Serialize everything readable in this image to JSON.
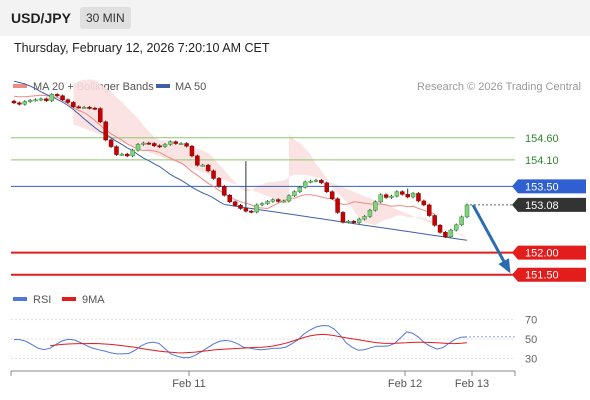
{
  "header": {
    "symbol": "USD/JPY",
    "timeframe": "30 MIN"
  },
  "datetime": "Thursday, February 12, 2026 7:20:10 AM CET",
  "legend": {
    "ma20_label": "MA 20 + Bollinger Bands",
    "ma50_label": "MA 50",
    "credit": "Research © 2026 Trading Central",
    "rsi_label": "RSI",
    "ma9_label": "9MA"
  },
  "colors": {
    "ma20": "#f08a84",
    "bands": "#fbe0e0",
    "ma50": "#3f5fa8",
    "green": "#8cc86e",
    "blue_level": "#2f5fd0",
    "red_level": "#e31c1c",
    "rsi": "#4f78d8",
    "ma9": "#e31c1c",
    "candle_up": "#7fd27f",
    "candle_down": "#c40000",
    "wick": "#333333",
    "arrow": "#2b6cb0",
    "last_price_bg": "#333333"
  },
  "chart_data": [
    {
      "type": "candlestick",
      "title": "USD/JPY",
      "timeframe": "30 MIN",
      "ylim": [
        151.2,
        155.5
      ],
      "x_ticks": [
        "Feb 11",
        "Feb 12",
        "Feb 13"
      ],
      "levels": [
        {
          "label": "154.60",
          "value": 154.6,
          "kind": "resistance"
        },
        {
          "label": "154.10",
          "value": 154.1,
          "kind": "resistance"
        },
        {
          "label": "153.50",
          "value": 153.5,
          "kind": "pivot"
        },
        {
          "label": "152.00",
          "value": 152.0,
          "kind": "support"
        },
        {
          "label": "151.50",
          "value": 151.5,
          "kind": "support"
        }
      ],
      "last_price": "153.08",
      "closes": [
        155.39,
        155.36,
        155.42,
        155.45,
        155.46,
        155.48,
        155.44,
        155.58,
        155.55,
        155.46,
        155.4,
        155.3,
        155.29,
        155.29,
        155.27,
        155.26,
        154.96,
        154.55,
        154.4,
        154.22,
        154.23,
        154.19,
        154.32,
        154.45,
        154.48,
        154.47,
        154.42,
        154.4,
        154.45,
        154.51,
        154.47,
        154.47,
        154.41,
        154.19,
        153.98,
        153.98,
        153.85,
        153.68,
        153.5,
        153.3,
        153.15,
        153.07,
        153.0,
        152.94,
        152.92,
        153.08,
        153.11,
        153.16,
        153.2,
        153.16,
        153.17,
        153.29,
        153.38,
        153.48,
        153.6,
        153.62,
        153.64,
        153.58,
        153.38,
        153.22,
        152.91,
        152.69,
        152.71,
        152.68,
        152.76,
        152.82,
        152.96,
        153.15,
        153.31,
        153.25,
        153.28,
        153.38,
        153.32,
        153.26,
        153.34,
        153.17,
        153.08,
        152.84,
        152.62,
        152.46,
        152.36,
        152.51,
        152.63,
        152.81,
        153.08
      ],
      "ma20": [
        155.54,
        155.53,
        155.53,
        155.54,
        155.55,
        155.56,
        155.55,
        155.53,
        155.52,
        155.45,
        155.37,
        155.28,
        155.22,
        155.17,
        155.09,
        154.99,
        154.88,
        154.78,
        154.69,
        154.62,
        154.55,
        154.46,
        154.4,
        154.34,
        154.31,
        154.32,
        154.3,
        154.27,
        154.2,
        154.14,
        154.08,
        154.03,
        153.94,
        153.83,
        153.75,
        153.66,
        153.57,
        153.5,
        153.41,
        153.34,
        153.26,
        153.2,
        153.15,
        153.12,
        153.08,
        153.02,
        153.01,
        153.0,
        153.06,
        153.12,
        153.17,
        153.23,
        153.23,
        153.28,
        153.31,
        153.31,
        153.29,
        153.26,
        153.23,
        153.22,
        153.13,
        153.09,
        153.1,
        153.15,
        153.14,
        153.12,
        153.1,
        153.1,
        153.1,
        153.08,
        153.05,
        153.06,
        153.06,
        153.04,
        153.05,
        153.0,
        152.96,
        152.91,
        152.88
      ],
      "ma50": [
        155.88,
        155.85,
        155.82,
        155.77,
        155.71,
        155.64,
        155.58,
        155.53,
        155.47,
        155.41,
        155.33,
        155.24,
        155.14,
        155.03,
        154.93,
        154.83,
        154.74,
        154.68,
        154.6,
        154.52,
        154.45,
        154.37,
        154.31,
        154.22,
        154.14,
        154.08,
        154.01,
        153.95,
        153.86,
        153.77,
        153.7,
        153.64,
        153.56,
        153.48,
        153.41,
        153.35,
        153.3,
        153.24,
        153.16,
        153.09
      ],
      "upper_band": [
        155.81,
        155.88,
        155.91,
        155.92,
        155.91,
        155.82,
        155.72,
        155.64,
        155.52,
        155.41,
        155.28,
        155.16,
        155.04,
        154.88,
        154.75,
        154.61,
        154.55,
        154.54,
        154.54,
        154.5,
        154.45,
        154.4,
        154.37,
        154.34,
        154.31,
        154.26,
        154.14,
        154.0,
        153.87,
        153.72,
        153.6,
        153.45,
        153.38,
        153.4,
        153.49,
        153.54,
        153.59,
        153.6,
        153.62,
        153.63,
        153.7,
        153.77,
        153.76,
        153.76,
        153.74,
        153.7,
        153.68
      ],
      "lower_band": [
        154.69,
        154.55,
        154.48,
        154.36,
        154.22,
        154.01,
        153.85,
        153.69,
        153.48,
        153.35,
        153.23,
        153.11,
        152.95,
        152.77,
        152.68,
        152.65,
        152.62,
        152.7,
        152.75,
        152.78,
        152.84,
        152.84,
        152.8,
        152.8,
        152.81,
        152.78,
        152.74,
        152.67,
        152.59,
        152.54,
        152.49,
        152.44,
        152.42,
        152.33
      ],
      "forecast": {
        "from": 153.08,
        "to": 151.5
      }
    },
    {
      "type": "line",
      "series": [
        {
          "name": "RSI",
          "values": [
            49.5,
            49.4,
            47.5,
            44.1,
            40.4,
            39.0,
            40.5,
            44.6,
            48.0,
            49.7,
            49.0,
            46.4,
            43.2,
            40.6,
            38.9,
            37.6,
            35.7,
            34.6,
            34.6,
            35.0,
            38.2,
            42.7,
            45.8,
            46.8,
            45.5,
            40.0,
            34.4,
            32.2,
            30.8,
            30.8,
            33.1,
            36.8,
            40.8,
            44.7,
            47.5,
            48.6,
            47.6,
            45.1,
            41.4,
            40.6,
            39.4,
            38.9,
            39.6,
            40.4,
            40.4,
            41.6,
            45.0,
            49.1,
            55.2,
            59.3,
            62.4,
            63.9,
            63.8,
            60.5,
            53.9,
            46.0,
            41.4,
            38.3,
            38.9,
            40.9,
            42.6,
            42.6,
            42.9,
            45.5,
            51.3,
            57.3,
            56.0,
            51.8,
            45.9,
            42.3,
            39.6,
            41.0,
            45.5,
            49.6,
            51.9,
            52.2
          ]
        },
        {
          "name": "9MA",
          "values": [
            43.0,
            43.8,
            44.4,
            44.8,
            45.1,
            45.2,
            45.2,
            45.3,
            45.2,
            44.8,
            44.4,
            43.8,
            43.1,
            42.2,
            41.4,
            40.3,
            39.2,
            38.3,
            37.5,
            36.8,
            36.2,
            35.8,
            35.6,
            36.0,
            36.5,
            37.2,
            37.9,
            38.6,
            39.1,
            39.5,
            39.9,
            40.3,
            40.6,
            40.9,
            41.3,
            41.5,
            41.9,
            42.9,
            44.2,
            45.7,
            47.5,
            49.6,
            51.6,
            53.2,
            54.2,
            54.8,
            54.4,
            53.5,
            52.3,
            51.1,
            50.2,
            49.3,
            48.2,
            47.2,
            46.3,
            45.7,
            45.5,
            45.6,
            45.9,
            46.1,
            46.5,
            46.7,
            46.6,
            46.4,
            46.1,
            45.8,
            45.3,
            45.2,
            45.6,
            46.1
          ]
        }
      ],
      "ylim": [
        20,
        80
      ],
      "y_ticks": [
        70,
        50,
        30
      ]
    }
  ]
}
